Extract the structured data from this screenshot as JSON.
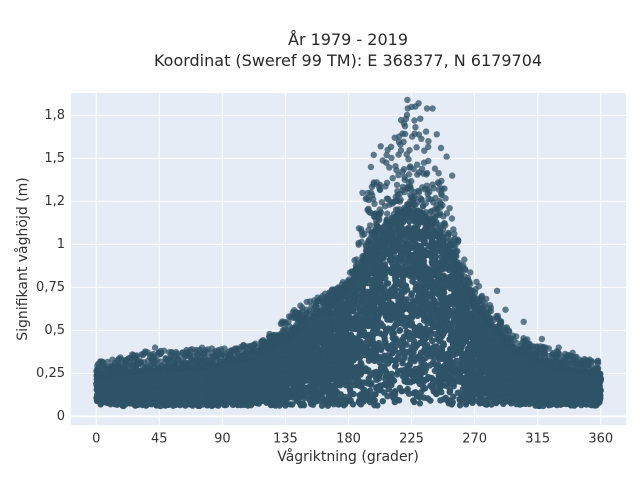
{
  "chart_data": {
    "type": "scatter",
    "title_lines": [
      "År 1979 - 2019",
      "Koordinat (Sweref 99 TM): E 368377, N 6179704"
    ],
    "xlabel": "Vågriktning (grader)",
    "ylabel": "Signifikant våghöjd (m)",
    "xlim": [
      -18,
      378
    ],
    "ylim": [
      -0.05,
      1.88
    ],
    "x_ticks": [
      0,
      45,
      90,
      135,
      180,
      225,
      270,
      315,
      360
    ],
    "x_tick_labels": [
      "0",
      "45",
      "90",
      "135",
      "180",
      "225",
      "270",
      "315",
      "360"
    ],
    "y_ticks": [
      0,
      0.25,
      0.5,
      0.75,
      1,
      1.25,
      1.5,
      1.75
    ],
    "y_tick_labels": [
      "0",
      "0,25",
      "0,5",
      "0,75",
      "1",
      "1,2",
      "1,5",
      "1,8"
    ],
    "grid": true,
    "marker_color": "#2e5266",
    "plot_background": "#e5ecf6",
    "envelope": {
      "direction": [
        0,
        15,
        30,
        45,
        60,
        75,
        90,
        105,
        120,
        135,
        150,
        165,
        180,
        190,
        200,
        210,
        220,
        225,
        230,
        240,
        250,
        260,
        270,
        280,
        290,
        300,
        315,
        330,
        345,
        360
      ],
      "typical_max_height": [
        0.24,
        0.25,
        0.26,
        0.27,
        0.28,
        0.29,
        0.3,
        0.33,
        0.38,
        0.45,
        0.55,
        0.63,
        0.75,
        0.9,
        1.1,
        1.15,
        1.2,
        1.25,
        1.2,
        1.12,
        1.0,
        0.82,
        0.65,
        0.55,
        0.45,
        0.38,
        0.32,
        0.28,
        0.26,
        0.25
      ],
      "outlier_max_height": [
        0.32,
        0.34,
        0.37,
        0.4,
        0.38,
        0.4,
        0.4,
        0.42,
        0.45,
        0.58,
        0.67,
        0.72,
        0.8,
        1.3,
        1.45,
        1.6,
        1.78,
        1.84,
        1.78,
        1.55,
        1.3,
        1.0,
        0.8,
        0.66,
        0.55,
        0.48,
        0.42,
        0.38,
        0.35,
        0.32
      ],
      "min_height": 0.06
    },
    "outliers": [
      {
        "x": 222,
        "y": 1.84
      },
      {
        "x": 230,
        "y": 1.82
      },
      {
        "x": 225,
        "y": 1.8
      },
      {
        "x": 236,
        "y": 1.79
      },
      {
        "x": 240,
        "y": 1.79
      },
      {
        "x": 227,
        "y": 1.72
      },
      {
        "x": 221,
        "y": 1.73
      },
      {
        "x": 213,
        "y": 1.62
      },
      {
        "x": 243,
        "y": 1.64
      },
      {
        "x": 203,
        "y": 1.57
      },
      {
        "x": 208,
        "y": 1.55
      },
      {
        "x": 250,
        "y": 1.51
      },
      {
        "x": 198,
        "y": 1.52
      },
      {
        "x": 246,
        "y": 1.56
      },
      {
        "x": 237,
        "y": 1.6
      },
      {
        "x": 217,
        "y": 1.58
      },
      {
        "x": 196,
        "y": 1.45
      },
      {
        "x": 254,
        "y": 1.4
      },
      {
        "x": 190,
        "y": 1.3
      },
      {
        "x": 42,
        "y": 0.4
      },
      {
        "x": 46,
        "y": 0.38
      },
      {
        "x": 62,
        "y": 0.37
      },
      {
        "x": 35,
        "y": 0.37
      },
      {
        "x": 24,
        "y": 0.34
      },
      {
        "x": 3,
        "y": 0.32
      },
      {
        "x": 18,
        "y": 0.33
      },
      {
        "x": 76,
        "y": 0.37
      },
      {
        "x": 85,
        "y": 0.38
      },
      {
        "x": 96,
        "y": 0.36
      },
      {
        "x": 102,
        "y": 0.39
      },
      {
        "x": 110,
        "y": 0.41
      },
      {
        "x": 120,
        "y": 0.43
      },
      {
        "x": 130,
        "y": 0.46
      },
      {
        "x": 142,
        "y": 0.6
      },
      {
        "x": 150,
        "y": 0.62
      },
      {
        "x": 160,
        "y": 0.67
      },
      {
        "x": 168,
        "y": 0.7
      },
      {
        "x": 176,
        "y": 0.78
      },
      {
        "x": 286,
        "y": 0.73
      },
      {
        "x": 292,
        "y": 0.62
      },
      {
        "x": 305,
        "y": 0.55
      },
      {
        "x": 318,
        "y": 0.45
      },
      {
        "x": 330,
        "y": 0.4
      },
      {
        "x": 340,
        "y": 0.37
      },
      {
        "x": 352,
        "y": 0.33
      },
      {
        "x": 358,
        "y": 0.31
      }
    ]
  }
}
